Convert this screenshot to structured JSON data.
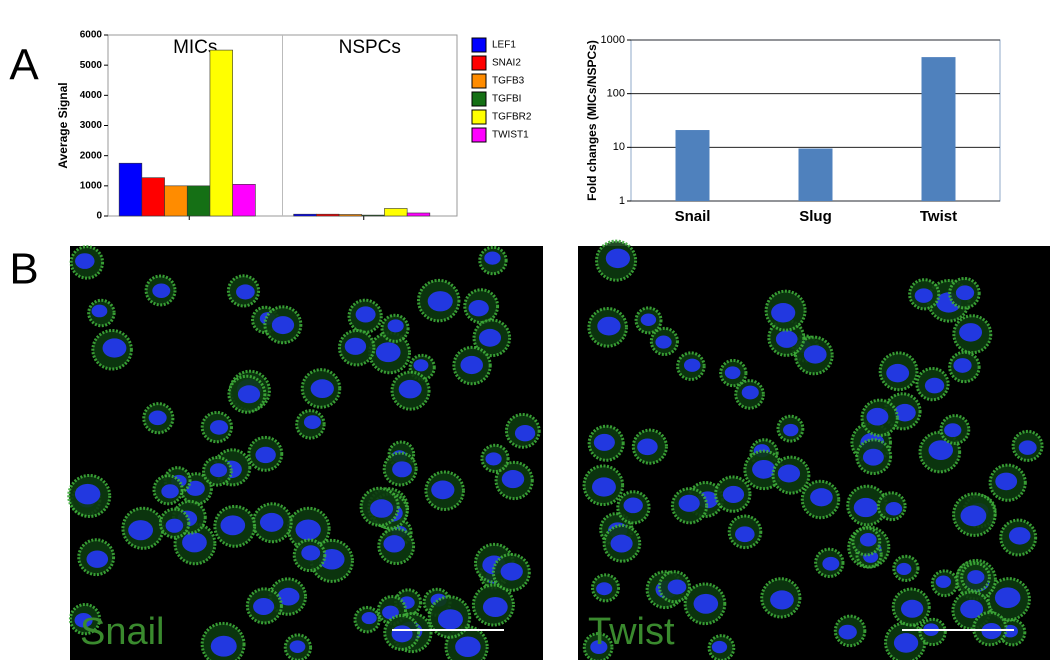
{
  "panels": {
    "a": "A",
    "b": "B"
  },
  "chart_data": [
    {
      "type": "grouped_bar",
      "ylabel": "Average Signal",
      "categories": [
        "MICs",
        "NSPCs"
      ],
      "series": [
        {
          "name": "LEF1",
          "color": "#0000ff",
          "values": [
            1750,
            60
          ]
        },
        {
          "name": "SNAI2",
          "color": "#ff0000",
          "values": [
            1270,
            60
          ]
        },
        {
          "name": "TGFB3",
          "color": "#ff8c00",
          "values": [
            1000,
            50
          ]
        },
        {
          "name": "TGFBI",
          "color": "#157015",
          "values": [
            1000,
            30
          ]
        },
        {
          "name": "TGFBR2",
          "color": "#ffff00",
          "values": [
            5500,
            250
          ]
        },
        {
          "name": "TWIST1",
          "color": "#ff00ff",
          "values": [
            1050,
            100
          ]
        }
      ],
      "ylim": [
        0,
        6000
      ],
      "yticks": [
        0,
        1000,
        2000,
        3000,
        4000,
        5000,
        6000
      ],
      "legend": "right"
    },
    {
      "type": "bar",
      "ylabel": "Fold changes (MICs/NSPCs)",
      "categories": [
        "Snail",
        "Slug",
        "Twist"
      ],
      "values": [
        21,
        9.5,
        480
      ],
      "color": "#4f81bd",
      "log": true,
      "ylim": [
        1,
        1000
      ],
      "yticks": [
        1,
        10,
        100,
        1000
      ],
      "grid": true
    }
  ],
  "images": [
    {
      "label": "Snail"
    },
    {
      "label": "Twist"
    }
  ]
}
